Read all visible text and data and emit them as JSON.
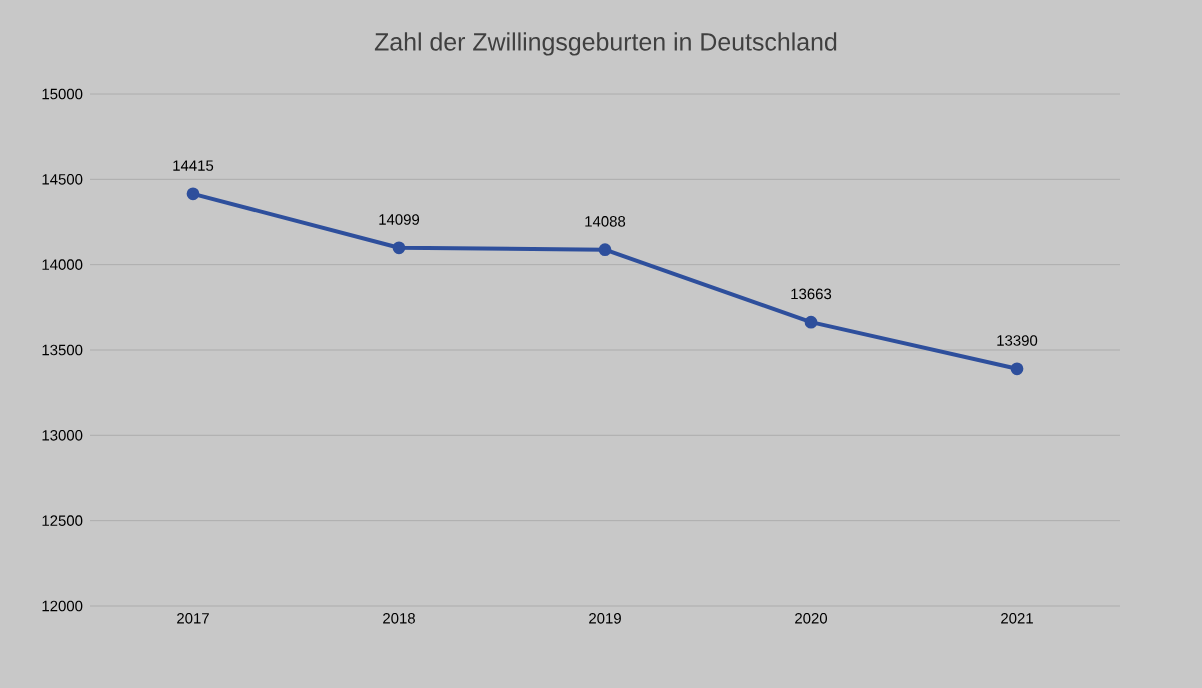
{
  "chart_data": {
    "type": "line",
    "title": "Zahl der Zwillingsgeburten in Deutschland",
    "categories": [
      "2017",
      "2018",
      "2019",
      "2020",
      "2021"
    ],
    "series": [
      {
        "color": "#2e4f9c",
        "values": [
          14415,
          14099,
          14088,
          13663,
          13390
        ]
      }
    ],
    "ylim": [
      12000,
      15000
    ],
    "yticks": [
      12000,
      12500,
      13000,
      13500,
      14000,
      14500,
      15000
    ],
    "grid": "y",
    "data_labels": true,
    "marker": "circle",
    "line_style": "solid"
  }
}
